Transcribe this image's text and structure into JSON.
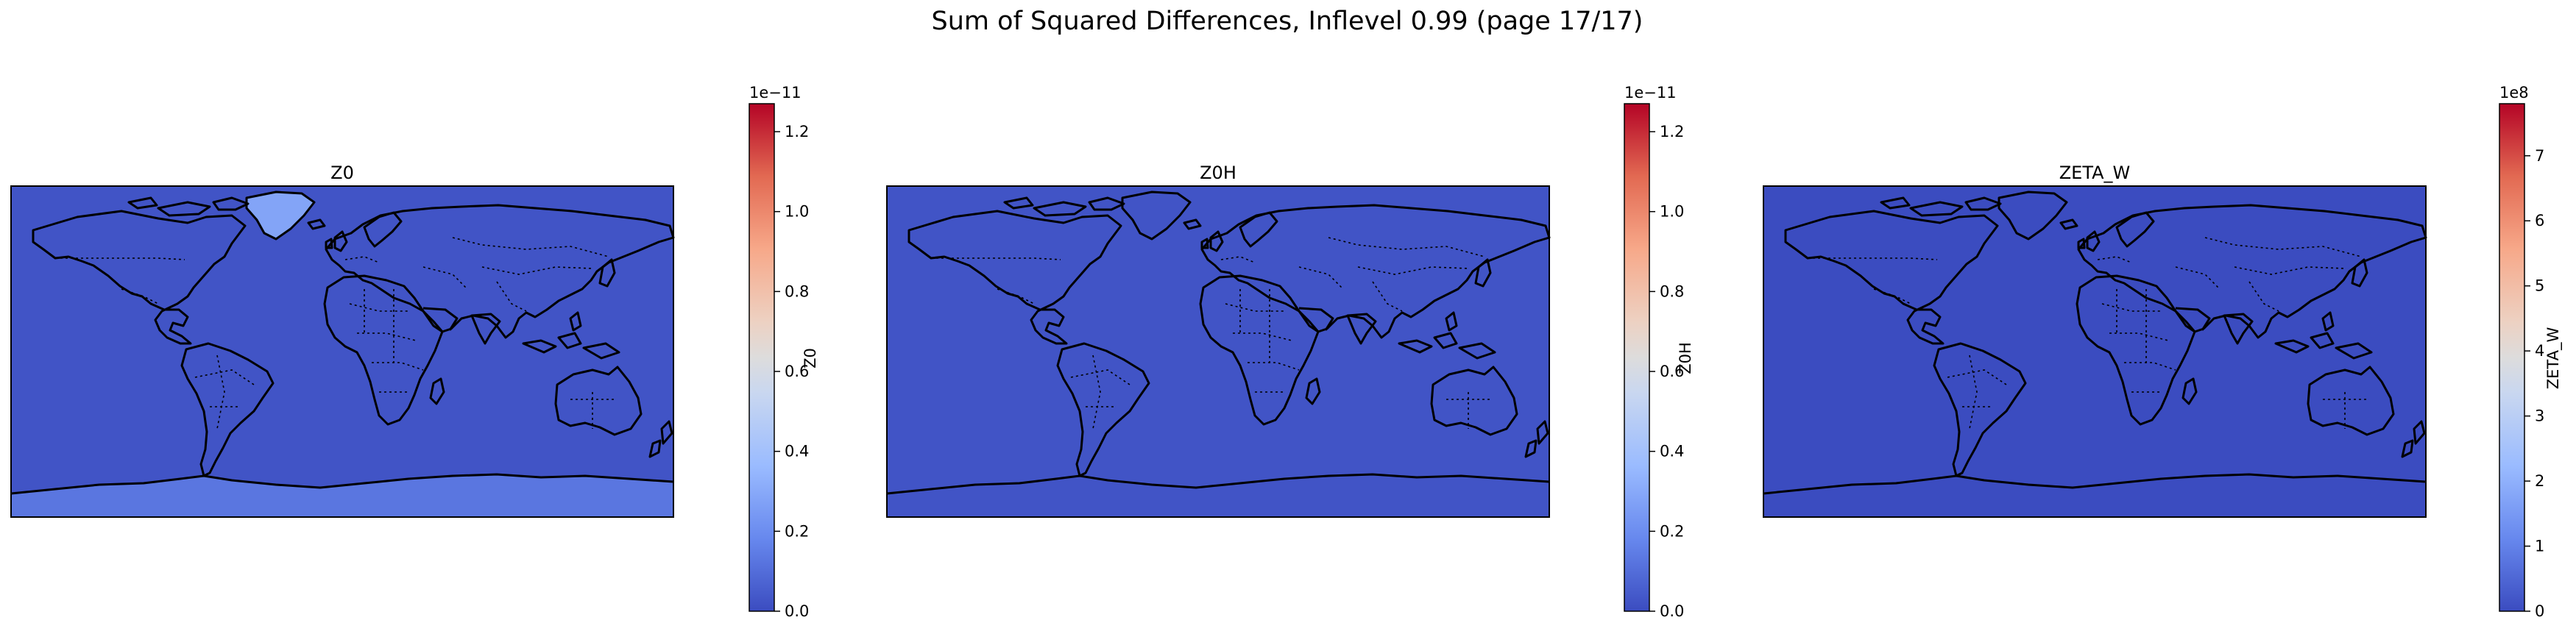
{
  "title": "Sum of Squared Differences, Inflevel 0.99 (page 17/17)",
  "chart_data": [
    {
      "type": "heatmap",
      "title": "Z0",
      "colorbar_label": "Z0",
      "colorbar_exponent": "1e−11",
      "colorbar_range": [
        0.0,
        1.27
      ],
      "colorbar_ticks": [
        "0.0",
        "0.2",
        "0.4",
        "0.6",
        "0.8",
        "1.0",
        "1.2"
      ],
      "colorbar_tick_values": [
        0.0,
        0.2,
        0.4,
        0.6,
        0.8,
        1.0,
        1.2
      ],
      "background_level": 0.02,
      "antarctica_level": 0.1,
      "greenland_level": 0.22,
      "colormap": "coolwarm"
    },
    {
      "type": "heatmap",
      "title": "Z0H",
      "colorbar_label": "Z0H",
      "colorbar_exponent": "1e−11",
      "colorbar_range": [
        0.0,
        1.27
      ],
      "colorbar_ticks": [
        "0.0",
        "0.2",
        "0.4",
        "0.6",
        "0.8",
        "1.0",
        "1.2"
      ],
      "colorbar_tick_values": [
        0.0,
        0.2,
        0.4,
        0.6,
        0.8,
        1.0,
        1.2
      ],
      "background_level": 0.02,
      "antarctica_level": 0.02,
      "greenland_level": 0.02,
      "colormap": "coolwarm"
    },
    {
      "type": "heatmap",
      "title": "ZETA_W",
      "colorbar_label": "ZETA_W",
      "colorbar_exponent": "1e8",
      "colorbar_range": [
        0,
        7.8
      ],
      "colorbar_ticks": [
        "0",
        "1",
        "2",
        "3",
        "4",
        "5",
        "6",
        "7"
      ],
      "colorbar_tick_values": [
        0,
        1,
        2,
        3,
        4,
        5,
        6,
        7
      ],
      "background_level": 0.0,
      "antarctica_level": 0.0,
      "greenland_level": 0.0,
      "colormap": "coolwarm"
    }
  ],
  "colors": {
    "coolwarm": [
      "#3b4cc0",
      "#6788ee",
      "#9abbff",
      "#c9d7f0",
      "#edd1c2",
      "#f7a889",
      "#e26952",
      "#b40426"
    ]
  }
}
